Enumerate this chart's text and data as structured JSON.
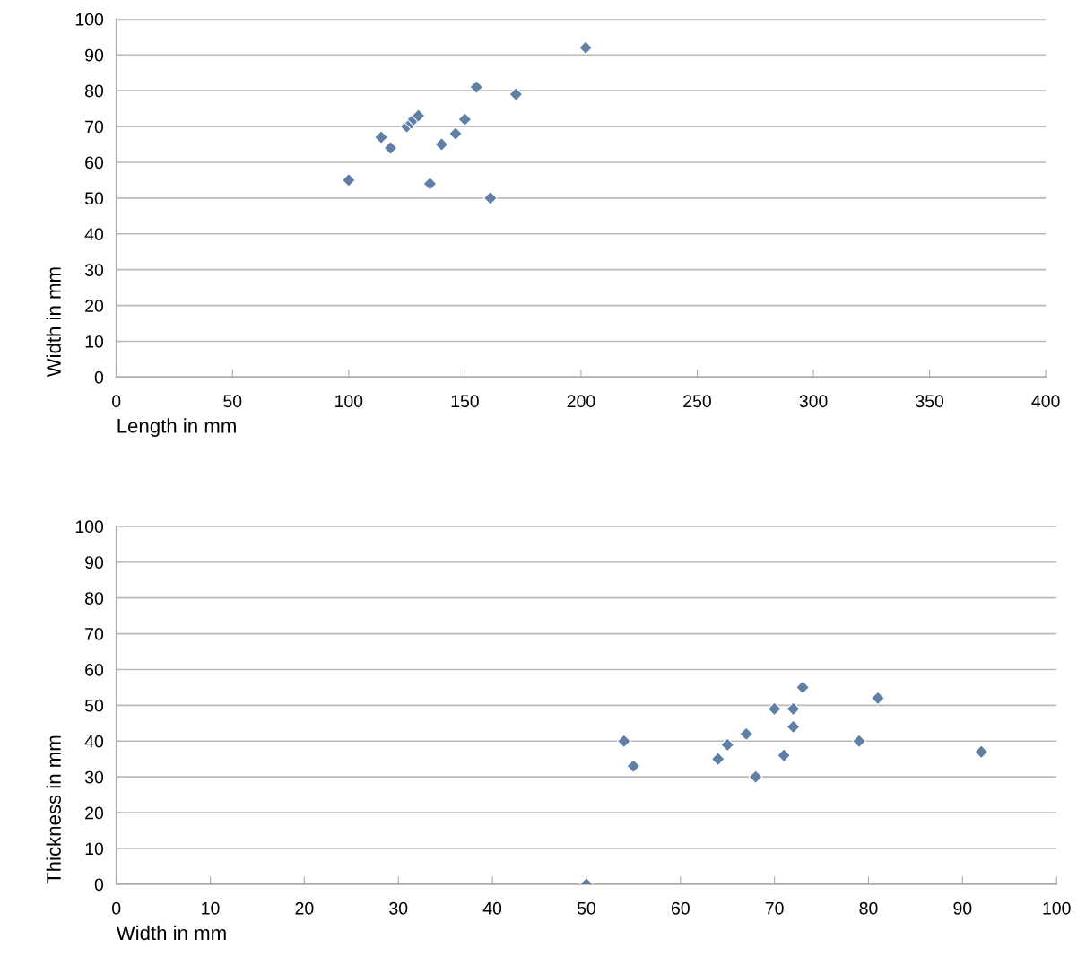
{
  "chart_data": [
    {
      "type": "scatter",
      "xlabel": "Length in mm",
      "ylabel": "Width in mm",
      "marker": "diamond",
      "grid": "y",
      "color": "#5f7fa6",
      "x": [
        100,
        114,
        118,
        125,
        127,
        128,
        130,
        135,
        140,
        146,
        150,
        155,
        161,
        172,
        202
      ],
      "values": [
        55,
        67,
        64,
        70,
        71,
        72,
        73,
        54,
        65,
        68,
        72,
        81,
        50,
        79,
        92
      ],
      "xlim": [
        0,
        400
      ],
      "xticks": [
        0,
        50,
        100,
        150,
        200,
        250,
        300,
        350,
        400
      ],
      "ylim": [
        0,
        100
      ],
      "yticks": [
        0,
        10,
        20,
        30,
        40,
        50,
        60,
        70,
        80,
        90,
        100
      ]
    },
    {
      "type": "scatter",
      "xlabel": "Width in mm",
      "ylabel": "Thickness in mm",
      "marker": "diamond",
      "grid": "y",
      "color": "#5f7fa6",
      "x": [
        50,
        54,
        55,
        64,
        65,
        67,
        68,
        70,
        71,
        72,
        72,
        73,
        79,
        81,
        92
      ],
      "values": [
        0,
        40,
        33,
        35,
        39,
        42,
        30,
        49,
        36,
        49,
        44,
        55,
        40,
        52,
        37
      ],
      "xlim": [
        0,
        100
      ],
      "xticks": [
        0,
        10,
        20,
        30,
        40,
        50,
        60,
        70,
        80,
        90,
        100
      ],
      "ylim": [
        0,
        100
      ],
      "yticks": [
        0,
        10,
        20,
        30,
        40,
        50,
        60,
        70,
        80,
        90,
        100
      ]
    }
  ]
}
